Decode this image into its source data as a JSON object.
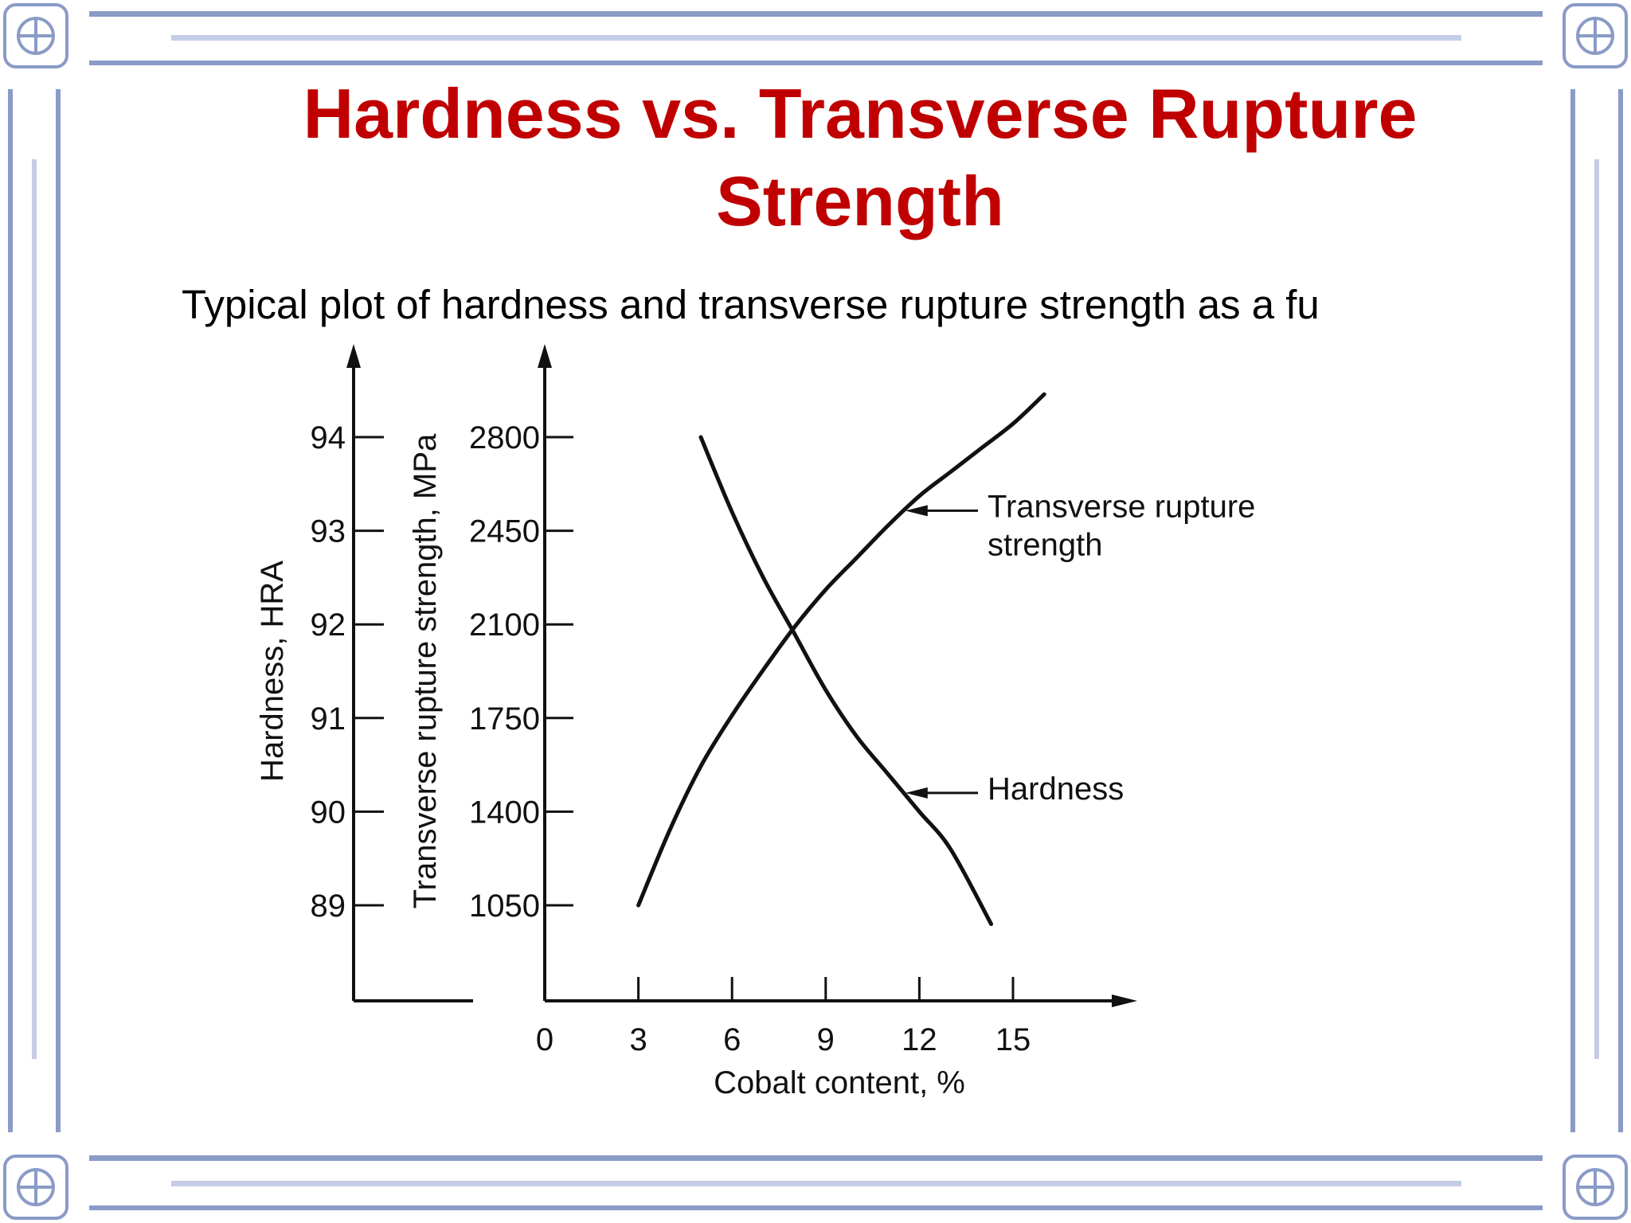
{
  "slide": {
    "title": "Hardness vs. Transverse Rupture Strength",
    "body_text": "Typical plot of hardness and transverse rupture strength as a fu"
  },
  "colors": {
    "title": "#c00000",
    "frame": "#8a9bc8",
    "frame_light": "#c3cde6",
    "ink": "#111111"
  },
  "chart_data": {
    "type": "line",
    "xlabel": "Cobalt content, %",
    "ylabel_left": "Hardness, HRA",
    "ylabel_right": "Transverse rupture strength, MPa",
    "x_ticks": [
      "0",
      "3",
      "6",
      "9",
      "12",
      "15"
    ],
    "xlim": [
      0,
      18.5
    ],
    "hardness_ticks": [
      "89",
      "90",
      "91",
      "92",
      "93",
      "94"
    ],
    "hardness_lim": [
      88,
      95
    ],
    "strength_ticks": [
      "1050",
      "1400",
      "1750",
      "2100",
      "2450",
      "2800"
    ],
    "strength_lim": [
      700,
      3150
    ],
    "series": [
      {
        "name": "Transverse rupture strength",
        "axis": "right",
        "x": [
          3,
          4,
          5,
          6,
          7,
          8,
          9,
          10,
          11,
          12,
          13,
          14,
          15,
          16
        ],
        "y": [
          1050,
          1330,
          1570,
          1760,
          1930,
          2090,
          2230,
          2350,
          2470,
          2580,
          2670,
          2760,
          2850,
          2960
        ]
      },
      {
        "name": "Hardness",
        "axis": "left",
        "x": [
          5,
          6,
          7,
          8,
          9,
          10,
          11,
          12,
          13,
          14.3
        ],
        "y": [
          94.0,
          93.2,
          92.5,
          91.9,
          91.3,
          90.8,
          90.4,
          90.0,
          89.6,
          88.8
        ]
      }
    ],
    "annotations": [
      {
        "text_lines": [
          "Transverse rupture",
          "strength"
        ],
        "target": "Transverse rupture strength",
        "at_x": 11.5
      },
      {
        "text_lines": [
          "Hardness"
        ],
        "target": "Hardness",
        "at_x": 11.5
      }
    ]
  }
}
